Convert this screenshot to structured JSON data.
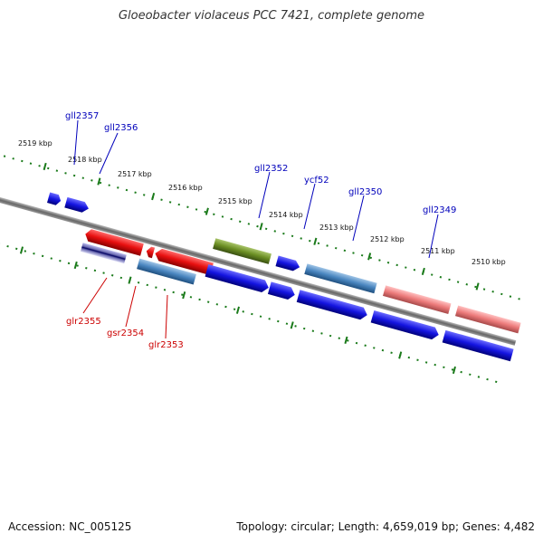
{
  "title": "Gloeobacter violaceus PCC 7421, complete genome",
  "footer": {
    "accession": "Accession: NC_005125",
    "summary": "Topology: circular; Length: 4,659,019 bp; Genes: 4,482"
  },
  "colors": {
    "backbone": "#777777",
    "tick": "#1a7a1a",
    "forward_label": "#0000bb",
    "reverse_label": "#cc0000",
    "red": "#e81010",
    "blue": "#1414e0",
    "steel": "#4a86c0",
    "olive": "#6b8e23",
    "pink": "#ec7a7a",
    "purple": "#6a6ab0"
  },
  "scale": {
    "unit": "kbp",
    "tick_labels": [
      "2519 kbp",
      "2518 kbp",
      "2517 kbp",
      "2516 kbp",
      "2515 kbp",
      "2514 kbp",
      "2513 kbp",
      "2512 kbp",
      "2511 kbp",
      "2510 kbp"
    ]
  },
  "genes_forward": [
    {
      "name": "gll2357"
    },
    {
      "name": "gll2356"
    },
    {
      "name": "gll2352"
    },
    {
      "name": "ycf52"
    },
    {
      "name": "gll2350"
    },
    {
      "name": "gll2349"
    }
  ],
  "genes_reverse": [
    {
      "name": "glr2355"
    },
    {
      "name": "gsr2354"
    },
    {
      "name": "glr2353"
    }
  ]
}
